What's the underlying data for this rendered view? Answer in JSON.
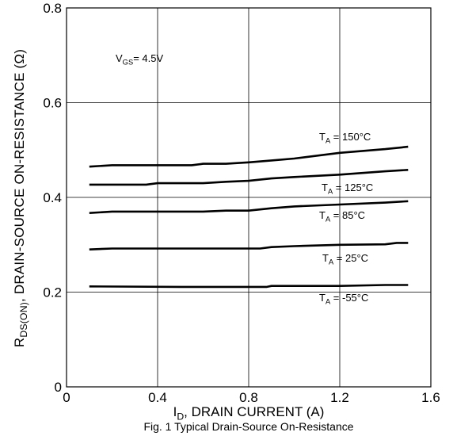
{
  "chart_data": {
    "type": "line",
    "title": "",
    "caption": "Fig. 1 Typical Drain-Source On-Resistance",
    "xlabel": {
      "main": "I",
      "sub": "D",
      "rest": ", DRAIN CURRENT (A)"
    },
    "ylabel": {
      "main": "R",
      "sub": "DS(ON)",
      "rest": ", DRAIN-SOURCE ON-RESISTANCE (Ω)"
    },
    "xlim": [
      0,
      1.6
    ],
    "ylim": [
      0,
      0.8
    ],
    "xticks": [
      0,
      0.4,
      0.8,
      1.2,
      1.6
    ],
    "xtick_labels": [
      "0",
      "0.4",
      "0.8",
      "1.2",
      "1.6"
    ],
    "yticks": [
      0,
      0.2,
      0.4,
      0.6,
      0.8
    ],
    "ytick_labels": [
      "0",
      "0.2",
      "0.4",
      "0.6",
      "0.8"
    ],
    "grid": true,
    "annotation": {
      "main": "V",
      "sub": "GS",
      "rest": "= 4.5V"
    },
    "series": [
      {
        "name": "T_A = 150°C",
        "label_main": "T",
        "label_sub": "A",
        "label_rest": " = 150°C",
        "x": [
          0.1,
          0.2,
          0.55,
          0.6,
          0.7,
          0.8,
          0.9,
          1.0,
          1.2,
          1.4,
          1.5
        ],
        "y": [
          0.465,
          0.468,
          0.468,
          0.471,
          0.471,
          0.474,
          0.478,
          0.482,
          0.494,
          0.502,
          0.507
        ]
      },
      {
        "name": "T_A = 125°C",
        "label_main": "T",
        "label_sub": "A",
        "label_rest": " = 125°C",
        "x": [
          0.1,
          0.2,
          0.35,
          0.4,
          0.6,
          0.7,
          0.8,
          0.9,
          1.0,
          1.2,
          1.4,
          1.5
        ],
        "y": [
          0.427,
          0.427,
          0.427,
          0.43,
          0.43,
          0.433,
          0.435,
          0.44,
          0.443,
          0.448,
          0.455,
          0.458
        ]
      },
      {
        "name": "T_A = 85°C",
        "label_main": "T",
        "label_sub": "A",
        "label_rest": " = 85°C",
        "x": [
          0.1,
          0.2,
          0.6,
          0.7,
          0.8,
          0.9,
          1.0,
          1.2,
          1.4,
          1.5
        ],
        "y": [
          0.367,
          0.37,
          0.37,
          0.372,
          0.372,
          0.377,
          0.381,
          0.385,
          0.389,
          0.392
        ]
      },
      {
        "name": "T_A = 25°C",
        "label_main": "T",
        "label_sub": "A",
        "label_rest": " = 25°C",
        "x": [
          0.1,
          0.2,
          0.85,
          0.9,
          1.0,
          1.2,
          1.4,
          1.45,
          1.5
        ],
        "y": [
          0.29,
          0.292,
          0.292,
          0.295,
          0.297,
          0.3,
          0.301,
          0.304,
          0.304
        ]
      },
      {
        "name": "T_A = -55°C",
        "label_main": "T",
        "label_sub": "A",
        "label_rest": " = -55°C",
        "x": [
          0.1,
          0.5,
          0.88,
          0.9,
          1.2,
          1.4,
          1.5
        ],
        "y": [
          0.212,
          0.211,
          0.211,
          0.213,
          0.213,
          0.215,
          0.215
        ]
      }
    ]
  }
}
